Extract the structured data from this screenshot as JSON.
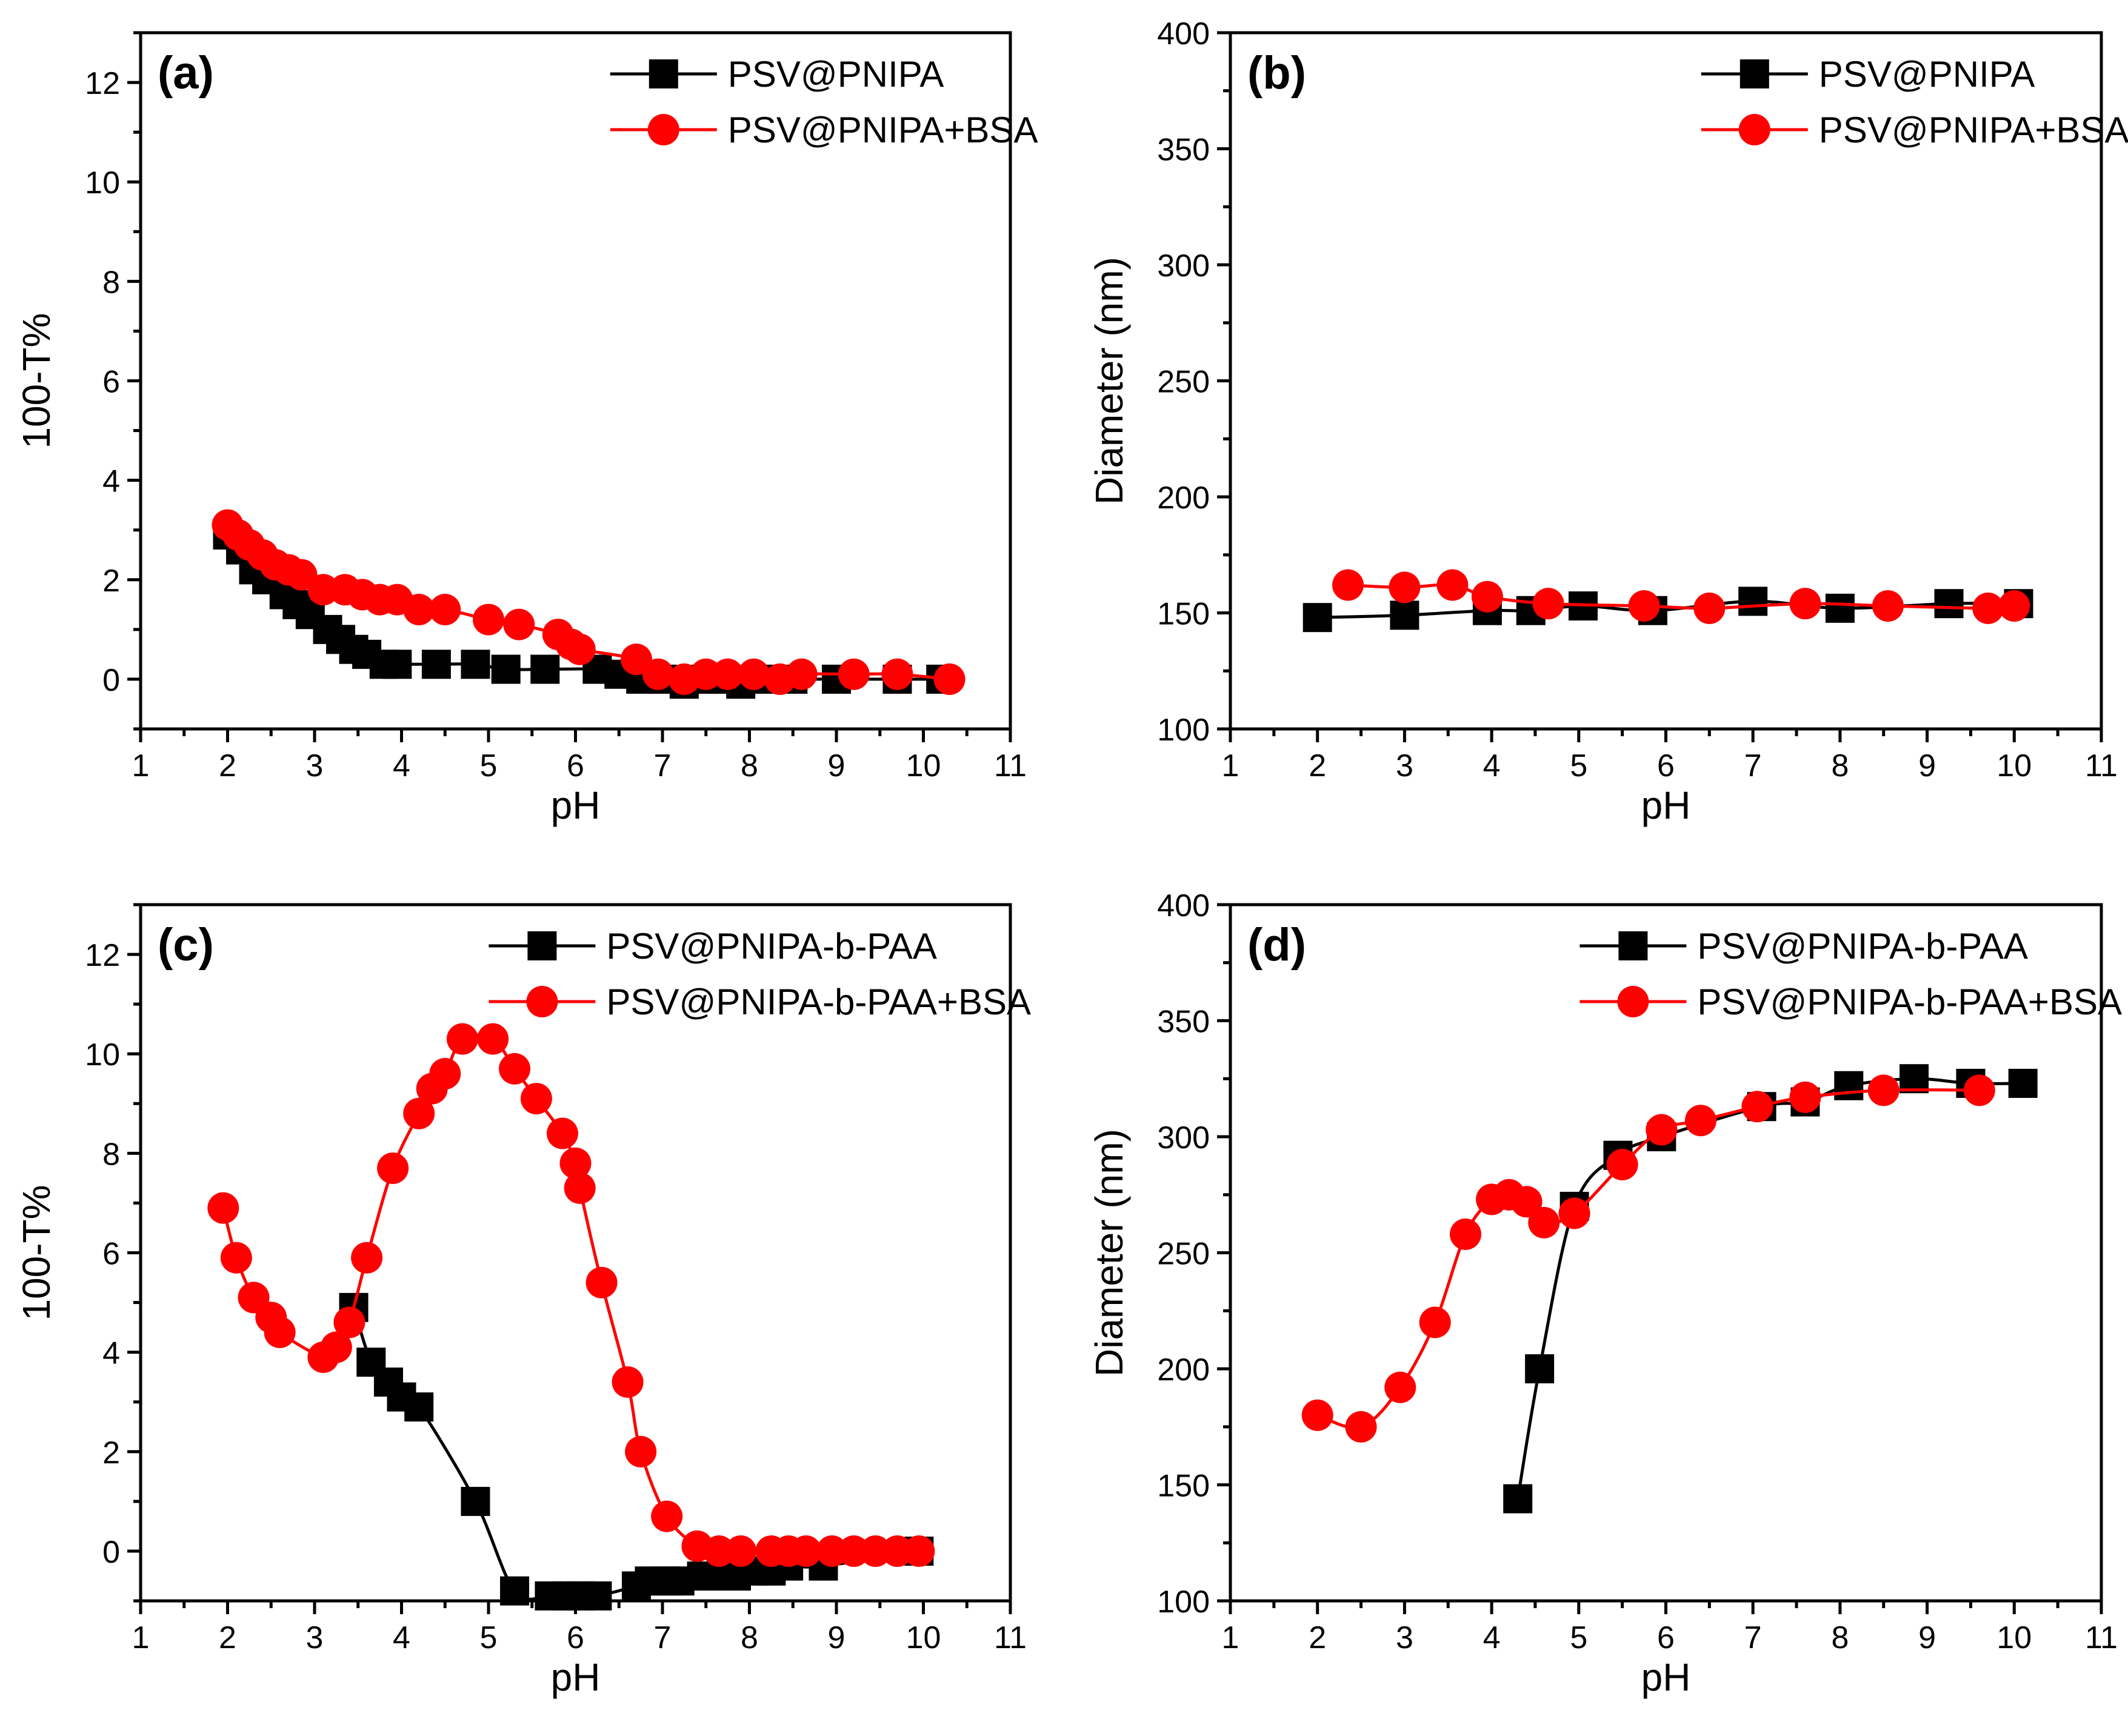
{
  "colors": {
    "series1": "#000000",
    "series2": "#ff0000",
    "series2_marker": "#ff0000",
    "axes": "#000000",
    "background": "#ffffff"
  },
  "chart_data": [
    {
      "type": "line",
      "panel_label": "(a)",
      "xlabel": "pH",
      "ylabel": "100-T%",
      "xlim": [
        1,
        11
      ],
      "ylim": [
        -1,
        13
      ],
      "xticks": [
        1,
        2,
        3,
        4,
        5,
        6,
        7,
        8,
        9,
        10,
        11
      ],
      "yticks": [
        0,
        2,
        4,
        6,
        8,
        10,
        12
      ],
      "legend_position": "top-right",
      "series": [
        {
          "name": "PSV@PNIPA",
          "marker": "square",
          "color": "#000000",
          "x": [
            2.0,
            2.15,
            2.3,
            2.45,
            2.65,
            2.8,
            2.95,
            3.15,
            3.3,
            3.45,
            3.6,
            3.8,
            3.95,
            4.4,
            4.85,
            5.2,
            5.65,
            6.25,
            6.5,
            6.75,
            7.0,
            7.25,
            7.5,
            7.7,
            7.9,
            8.2,
            8.5,
            9.0,
            9.7,
            10.2
          ],
          "y": [
            2.9,
            2.6,
            2.2,
            2.0,
            1.7,
            1.5,
            1.3,
            1.0,
            0.8,
            0.6,
            0.5,
            0.3,
            0.3,
            0.3,
            0.3,
            0.2,
            0.2,
            0.2,
            0.1,
            0.0,
            0.0,
            -0.1,
            0.0,
            0.0,
            -0.1,
            0.0,
            0.0,
            0.0,
            0.0,
            0.0
          ]
        },
        {
          "name": "PSV@PNIPA+BSA",
          "marker": "circle",
          "color": "#ff0000",
          "x": [
            2.0,
            2.12,
            2.25,
            2.4,
            2.55,
            2.7,
            2.85,
            3.1,
            3.35,
            3.55,
            3.75,
            3.95,
            4.2,
            4.5,
            5.0,
            5.35,
            5.8,
            5.95,
            6.05,
            6.7,
            6.95,
            7.25,
            7.5,
            7.75,
            8.05,
            8.35,
            8.6,
            9.2,
            9.7,
            10.3
          ],
          "y": [
            3.1,
            2.9,
            2.7,
            2.5,
            2.3,
            2.2,
            2.1,
            1.8,
            1.8,
            1.7,
            1.6,
            1.6,
            1.4,
            1.4,
            1.2,
            1.1,
            0.9,
            0.7,
            0.6,
            0.4,
            0.1,
            0.0,
            0.1,
            0.1,
            0.1,
            0.0,
            0.1,
            0.1,
            0.1,
            0.0
          ]
        }
      ]
    },
    {
      "type": "line",
      "panel_label": "(b)",
      "xlabel": "pH",
      "ylabel": "Diameter (nm)",
      "xlim": [
        1,
        11
      ],
      "ylim": [
        100,
        400
      ],
      "xticks": [
        1,
        2,
        3,
        4,
        5,
        6,
        7,
        8,
        9,
        10,
        11
      ],
      "yticks": [
        100,
        150,
        200,
        250,
        300,
        350,
        400
      ],
      "legend_position": "top-right",
      "series": [
        {
          "name": "PSV@PNIPA",
          "marker": "square",
          "color": "#000000",
          "x": [
            2.0,
            3.0,
            3.95,
            4.45,
            5.05,
            5.85,
            7.0,
            8.0,
            9.25,
            10.05
          ],
          "y": [
            148,
            149,
            151,
            151,
            153,
            151,
            155,
            152,
            154,
            154
          ]
        },
        {
          "name": "PSV@PNIPA+BSA",
          "marker": "circle",
          "color": "#ff0000",
          "x": [
            2.35,
            3.0,
            3.55,
            3.95,
            4.65,
            5.75,
            6.5,
            7.6,
            8.55,
            9.7,
            10.0
          ],
          "y": [
            162,
            161,
            162,
            157,
            154,
            153,
            152,
            154,
            153,
            152,
            153
          ]
        }
      ]
    },
    {
      "type": "line",
      "panel_label": "(c)",
      "xlabel": "pH",
      "ylabel": "100-T%",
      "xlim": [
        1,
        11
      ],
      "ylim": [
        -1,
        13
      ],
      "xticks": [
        1,
        2,
        3,
        4,
        5,
        6,
        7,
        8,
        9,
        10,
        11
      ],
      "yticks": [
        0,
        2,
        4,
        6,
        8,
        10,
        12
      ],
      "legend_position": "top-right",
      "series": [
        {
          "name": "PSV@PNIPA-b-PAA",
          "marker": "square",
          "color": "#000000",
          "x": [
            3.45,
            3.65,
            3.85,
            4.0,
            4.2,
            4.85,
            5.3,
            5.7,
            5.9,
            6.05,
            6.25,
            6.7,
            6.85,
            7.05,
            7.2,
            7.45,
            7.65,
            7.85,
            8.05,
            8.25,
            8.45,
            8.85,
            9.95
          ],
          "y": [
            4.9,
            3.8,
            3.4,
            3.1,
            2.9,
            1.0,
            -0.8,
            -0.9,
            -0.9,
            -0.9,
            -0.9,
            -0.7,
            -0.6,
            -0.6,
            -0.6,
            -0.5,
            -0.5,
            -0.5,
            -0.4,
            -0.4,
            -0.3,
            -0.3,
            0.0
          ]
        },
        {
          "name": "PSV@PNIPA-b-PAA+BSA",
          "marker": "circle",
          "color": "#ff0000",
          "x": [
            1.95,
            2.1,
            2.3,
            2.5,
            2.6,
            3.1,
            3.25,
            3.4,
            3.6,
            3.9,
            4.2,
            4.35,
            4.5,
            4.7,
            5.05,
            5.3,
            5.55,
            5.85,
            6.0,
            6.05,
            6.3,
            6.6,
            6.75,
            7.05,
            7.4,
            7.65,
            7.9,
            8.25,
            8.45,
            8.65,
            8.95,
            9.2,
            9.45,
            9.7,
            9.95
          ],
          "y": [
            6.9,
            5.9,
            5.1,
            4.7,
            4.4,
            3.9,
            4.1,
            4.6,
            5.9,
            7.7,
            8.8,
            9.3,
            9.6,
            10.3,
            10.3,
            9.7,
            9.1,
            8.4,
            7.8,
            7.3,
            5.4,
            3.4,
            2.0,
            0.7,
            0.1,
            0.0,
            0.0,
            0.0,
            0.0,
            0.0,
            0.0,
            0.0,
            0.0,
            0.0,
            0.0
          ]
        }
      ]
    },
    {
      "type": "line",
      "panel_label": "(d)",
      "xlabel": "pH",
      "ylabel": "Diameter (nm)",
      "xlim": [
        1,
        11
      ],
      "ylim": [
        100,
        400
      ],
      "xticks": [
        1,
        2,
        3,
        4,
        5,
        6,
        7,
        8,
        9,
        10,
        11
      ],
      "yticks": [
        100,
        150,
        200,
        250,
        300,
        350,
        400
      ],
      "legend_position": "top-right",
      "series": [
        {
          "name": "PSV@PNIPA-b-PAA",
          "marker": "square",
          "color": "#000000",
          "x": [
            4.3,
            4.55,
            4.95,
            5.45,
            5.95,
            7.1,
            7.6,
            8.1,
            8.85,
            9.5,
            10.1
          ],
          "y": [
            144,
            200,
            270,
            292,
            300,
            313,
            315,
            322,
            325,
            323,
            323
          ]
        },
        {
          "name": "PSV@PNIPA-b-PAA+BSA",
          "marker": "circle",
          "color": "#ff0000",
          "x": [
            2.0,
            2.5,
            2.95,
            3.35,
            3.7,
            4.0,
            4.2,
            4.4,
            4.6,
            4.95,
            5.5,
            5.95,
            6.4,
            7.05,
            7.6,
            8.5,
            9.6
          ],
          "y": [
            180,
            175,
            192,
            220,
            258,
            273,
            275,
            272,
            263,
            267,
            288,
            303,
            307,
            313,
            317,
            320,
            320
          ]
        }
      ]
    }
  ]
}
